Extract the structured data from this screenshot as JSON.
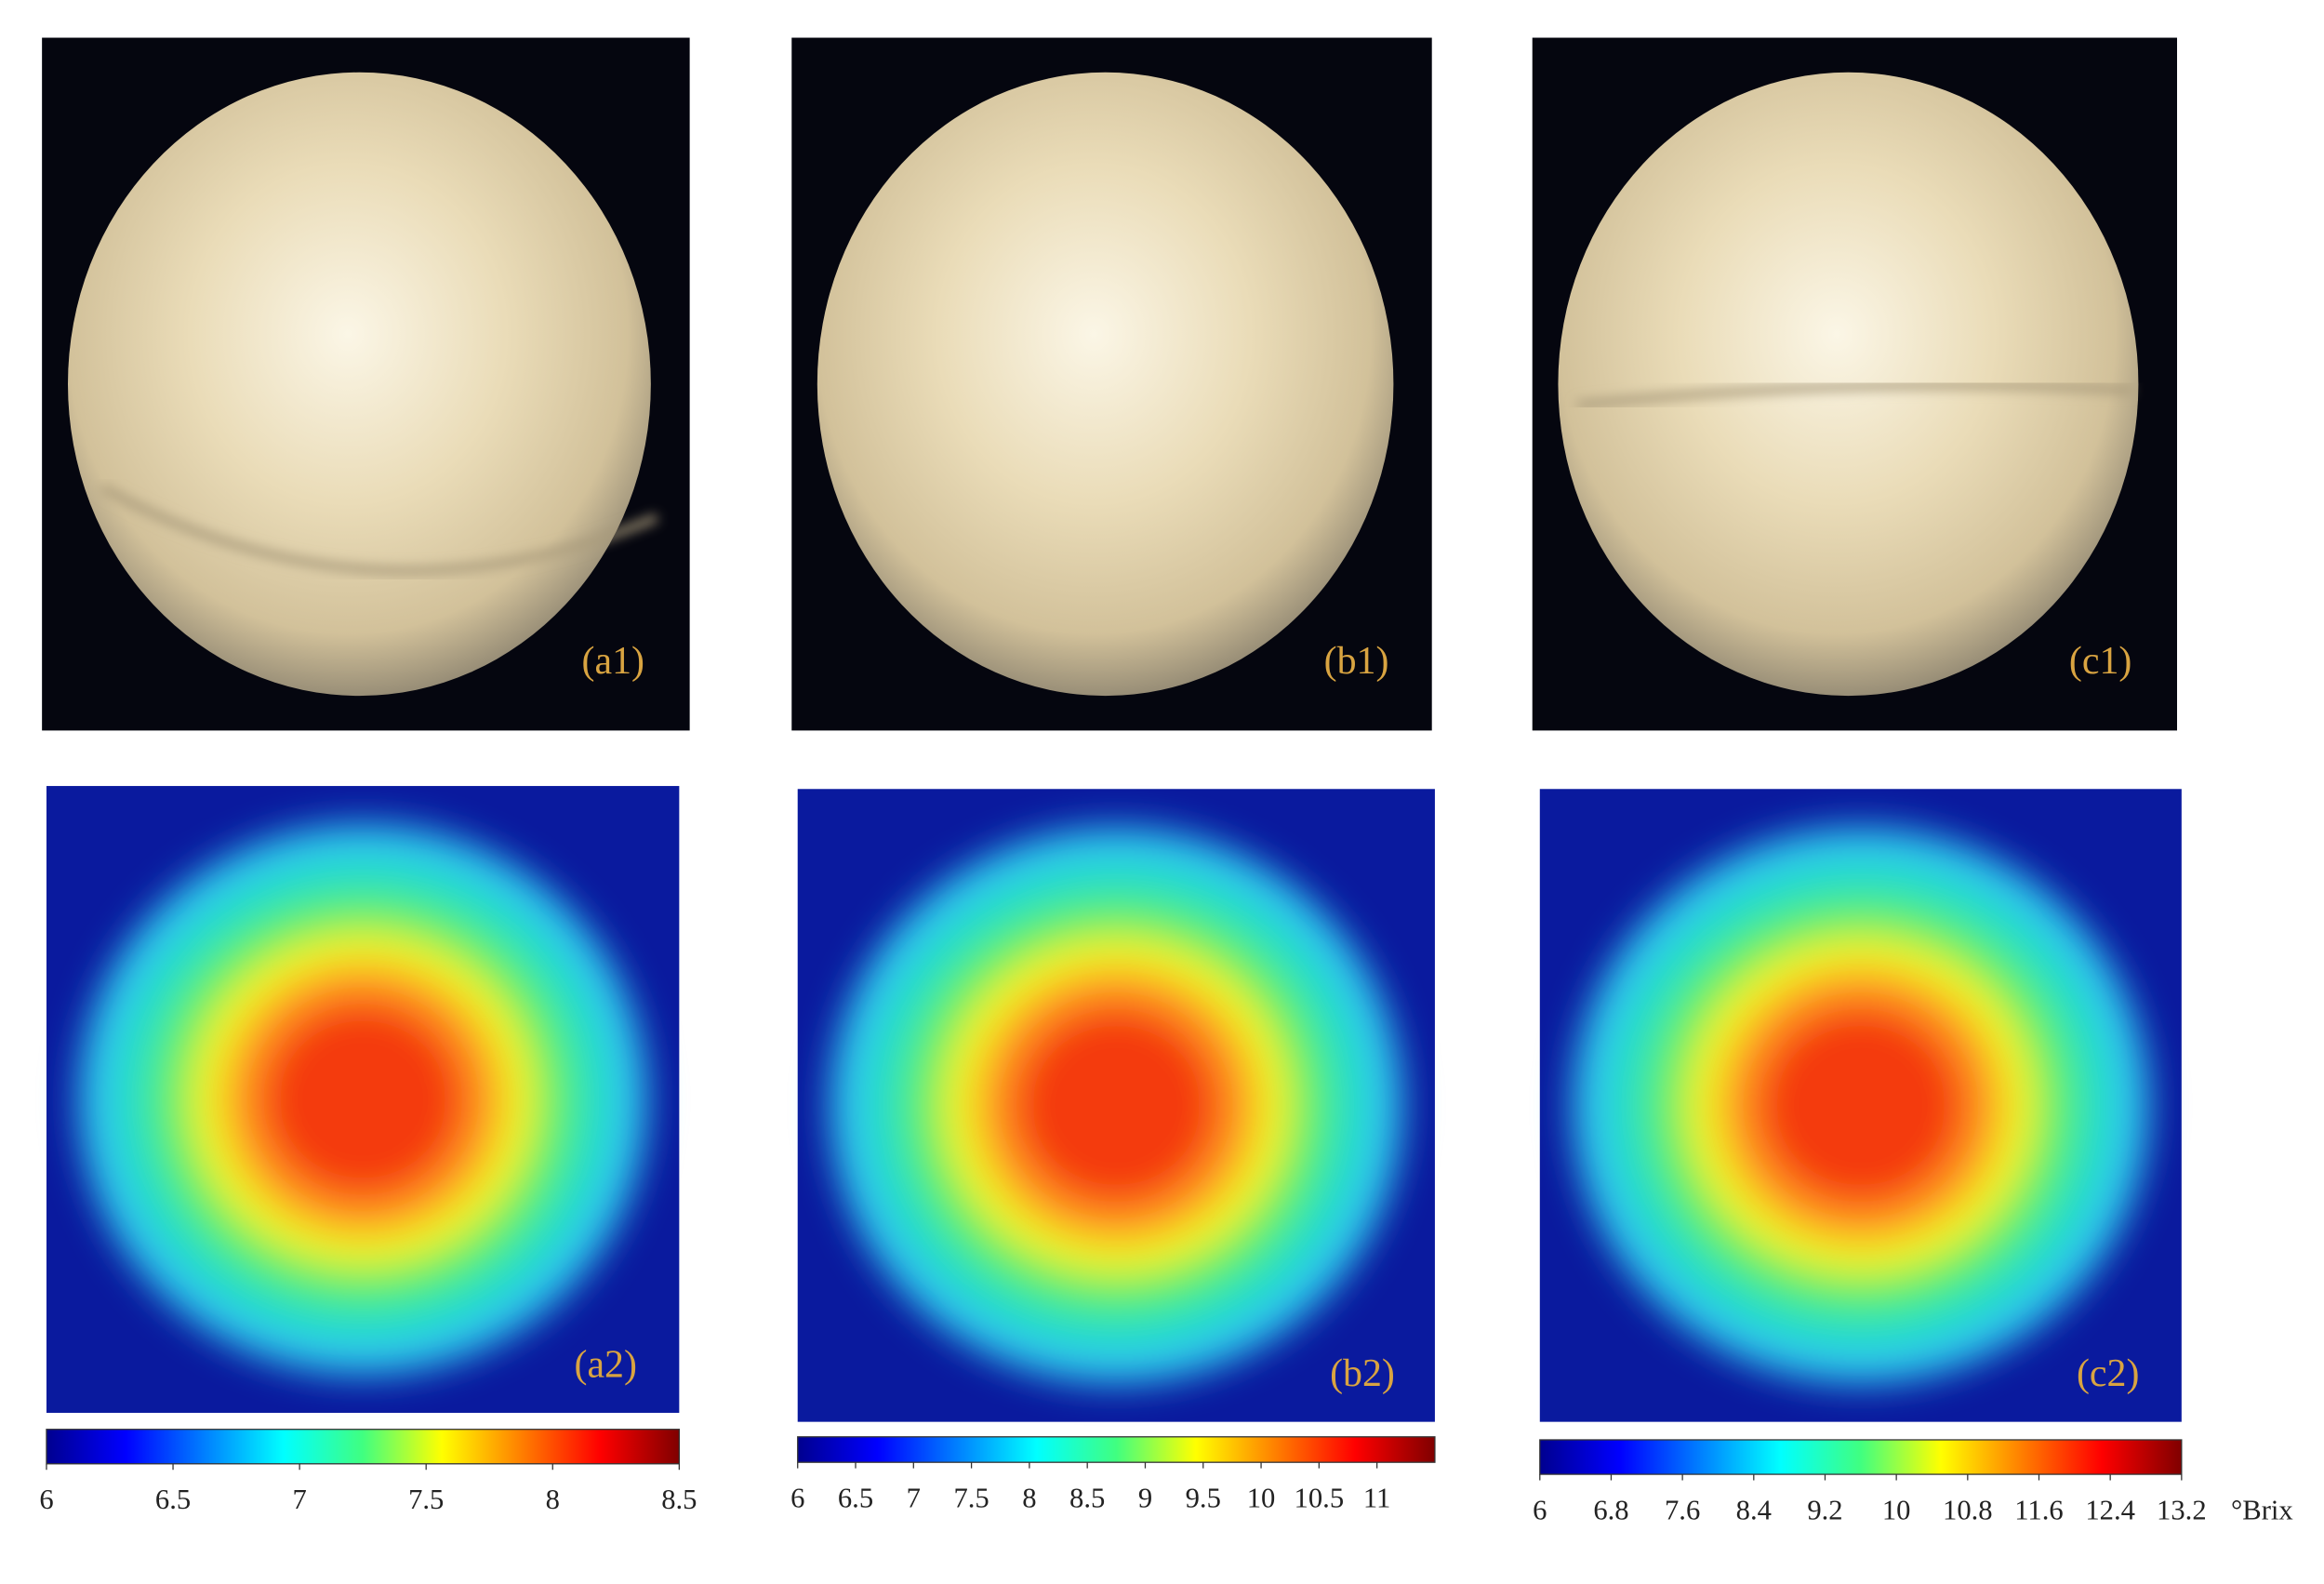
{
  "panels": [
    {
      "photo_label": "(a1)",
      "map_label": "(a2)",
      "colorbar": {
        "lim": [
          6,
          8.5
        ],
        "ticks": [
          6,
          6.5,
          7,
          7.5,
          8,
          8.5
        ]
      }
    },
    {
      "photo_label": "(b1)",
      "map_label": "(b2)",
      "colorbar": {
        "lim": [
          6,
          11.5
        ],
        "ticks": [
          6,
          6.5,
          7,
          7.5,
          8,
          8.5,
          9,
          9.5,
          10,
          10.5,
          11
        ]
      }
    },
    {
      "photo_label": "(c1)",
      "map_label": "(c2)",
      "colorbar": {
        "lim": [
          6,
          13.2
        ],
        "ticks": [
          6,
          6.8,
          7.6,
          8.4,
          9.2,
          10,
          10.8,
          11.6,
          12.4,
          13.2
        ]
      }
    }
  ],
  "unit": "°Brix"
}
